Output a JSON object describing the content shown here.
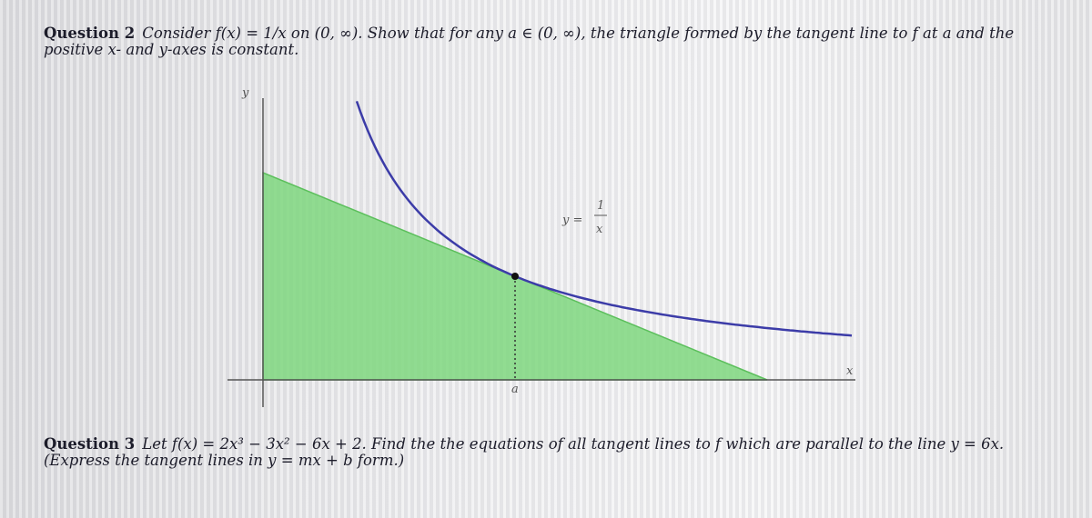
{
  "question2": {
    "label": "Question 2",
    "text": "Consider f(x) = 1/x on (0, ∞). Show that for any a ∈ (0, ∞), the triangle formed by the tangent line to f at a and the positive x- and y-axes is constant."
  },
  "figure": {
    "y_axis": "y",
    "x_axis": "x",
    "point": "a",
    "curve_label": {
      "lhs": "y =",
      "numerator": "1",
      "denominator": "x"
    }
  },
  "question3": {
    "label": "Question 3",
    "text": "Let f(x) = 2x³ − 3x² − 6x + 2. Find the the equations of all tangent lines to f which are parallel to the line y = 6x. (Express the tangent lines in y = mx + b form.)"
  }
}
